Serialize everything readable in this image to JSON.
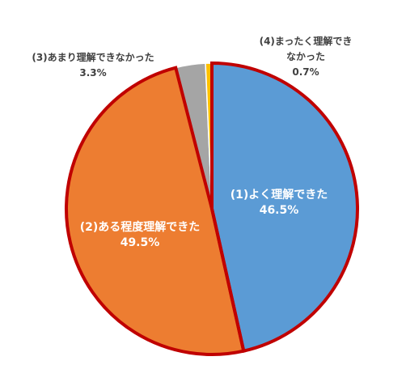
{
  "chart_data": {
    "type": "pie",
    "categories": [
      "(1)よく理解できた",
      "(2)ある程度理解できた",
      "(3)あまり理解できなかった",
      "(4)まったく理解できなかった"
    ],
    "values": [
      46.5,
      49.5,
      3.3,
      0.7
    ],
    "value_labels": [
      "46.5%",
      "49.5%",
      "3.3%",
      "0.7%"
    ],
    "colors": [
      "#5b9bd5",
      "#ed7d31",
      "#a5a5a5",
      "#ffc000"
    ],
    "outlined": [
      true,
      true,
      false,
      false
    ],
    "outline_color": "#c00000"
  }
}
